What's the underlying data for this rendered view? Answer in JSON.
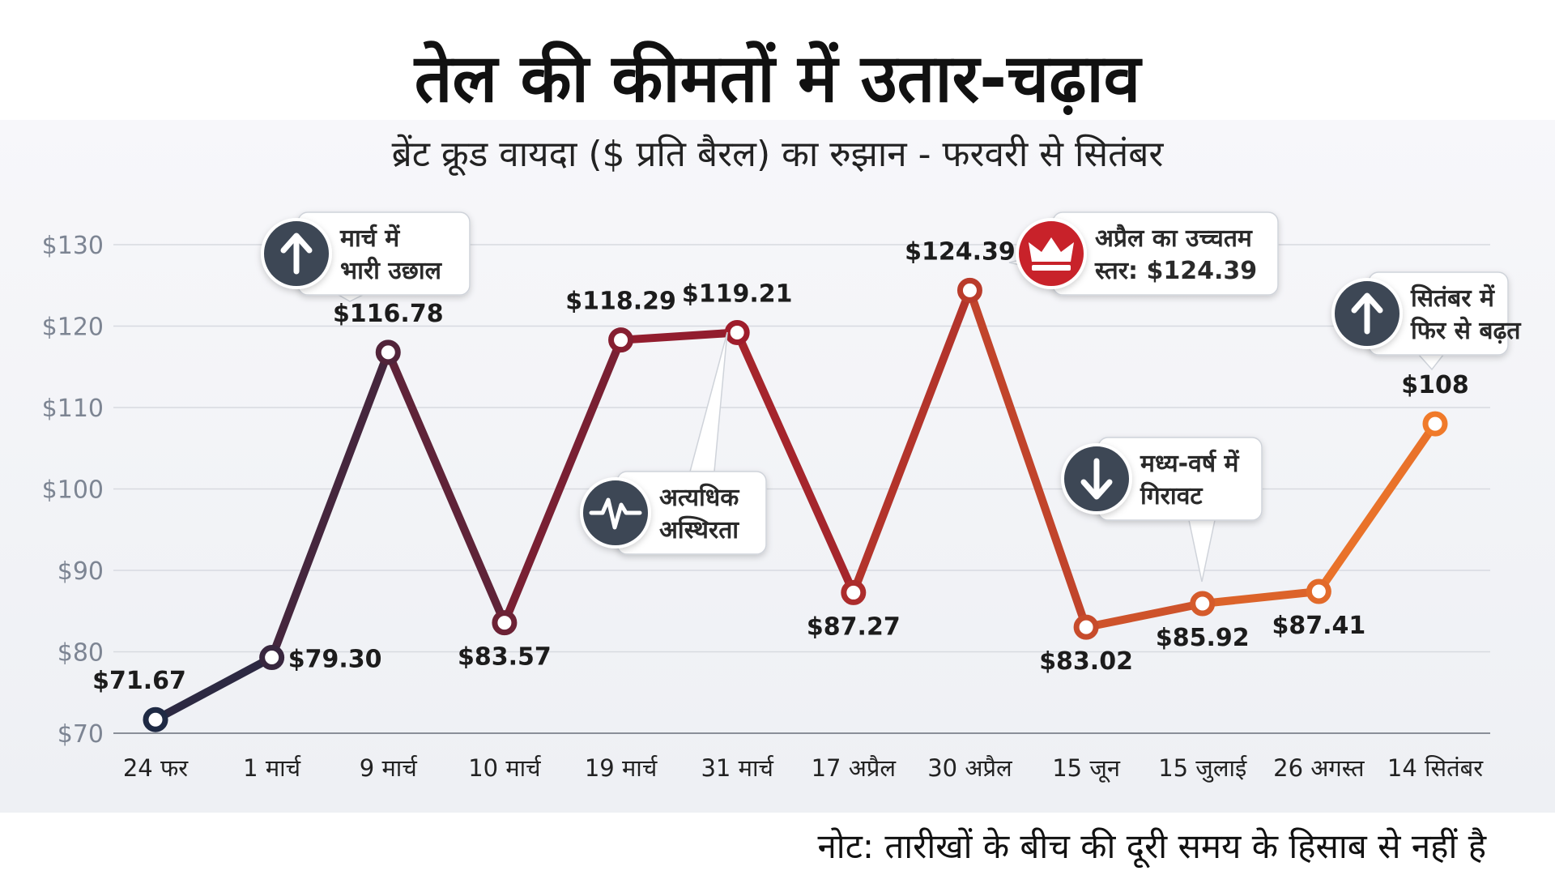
{
  "title": "तेल की कीमतों में उतार-चढ़ाव",
  "subtitle": "ब्रेंट क्रूड वायदा ($ प्रति बैरल) का रुझान - फरवरी से सितंबर",
  "note": "नोट: तारीखों के बीच की दूरी समय के हिसाब से नहीं है",
  "colors": {
    "start": "#1f2a44",
    "mid": "#9e1c2c",
    "end": "#f07a2a",
    "icon": "#3d4654",
    "crown": "#c8232c"
  },
  "chart_data": {
    "type": "line",
    "ylim": [
      70,
      130
    ],
    "yticks": [
      70,
      80,
      90,
      100,
      110,
      120,
      130
    ],
    "ytick_labels": [
      "$70",
      "$80",
      "$90",
      "$100",
      "$110",
      "$120",
      "$130"
    ],
    "categories": [
      "24 फर",
      "1 मार्च",
      "9 मार्च",
      "10 मार्च",
      "19 मार्च",
      "31 मार्च",
      "17 अप्रैल",
      "30 अप्रैल",
      "15 जून",
      "15 जुलाई",
      "26 अगस्त",
      "14 सितंबर"
    ],
    "values": [
      71.67,
      79.3,
      116.78,
      83.57,
      118.29,
      119.21,
      87.27,
      124.39,
      83.02,
      85.92,
      87.41,
      108
    ],
    "value_labels": [
      "$71.67",
      "$79.30",
      "$116.78",
      "$83.57",
      "$118.29",
      "$119.21",
      "$87.27",
      "$124.39",
      "$83.02",
      "$85.92",
      "$87.41",
      "$108"
    ],
    "grid": true,
    "annotations": [
      {
        "lines": [
          "मार्च में",
          "भारी उछाल"
        ],
        "icon": "arrow-up-icon",
        "point": 2
      },
      {
        "lines": [
          "अत्यधिक",
          "अस्थिरता"
        ],
        "icon": "pulse-icon",
        "point": 5
      },
      {
        "lines": [
          "अप्रैल का उच्चतम",
          "स्तर: $124.39"
        ],
        "icon": "crown-icon",
        "point": 7
      },
      {
        "lines": [
          "मध्य-वर्ष में",
          "गिरावट"
        ],
        "icon": "arrow-down-icon",
        "point": 9
      },
      {
        "lines": [
          "सितंबर में",
          "फिर से बढ़त"
        ],
        "icon": "arrow-up-icon",
        "point": 11
      }
    ]
  }
}
